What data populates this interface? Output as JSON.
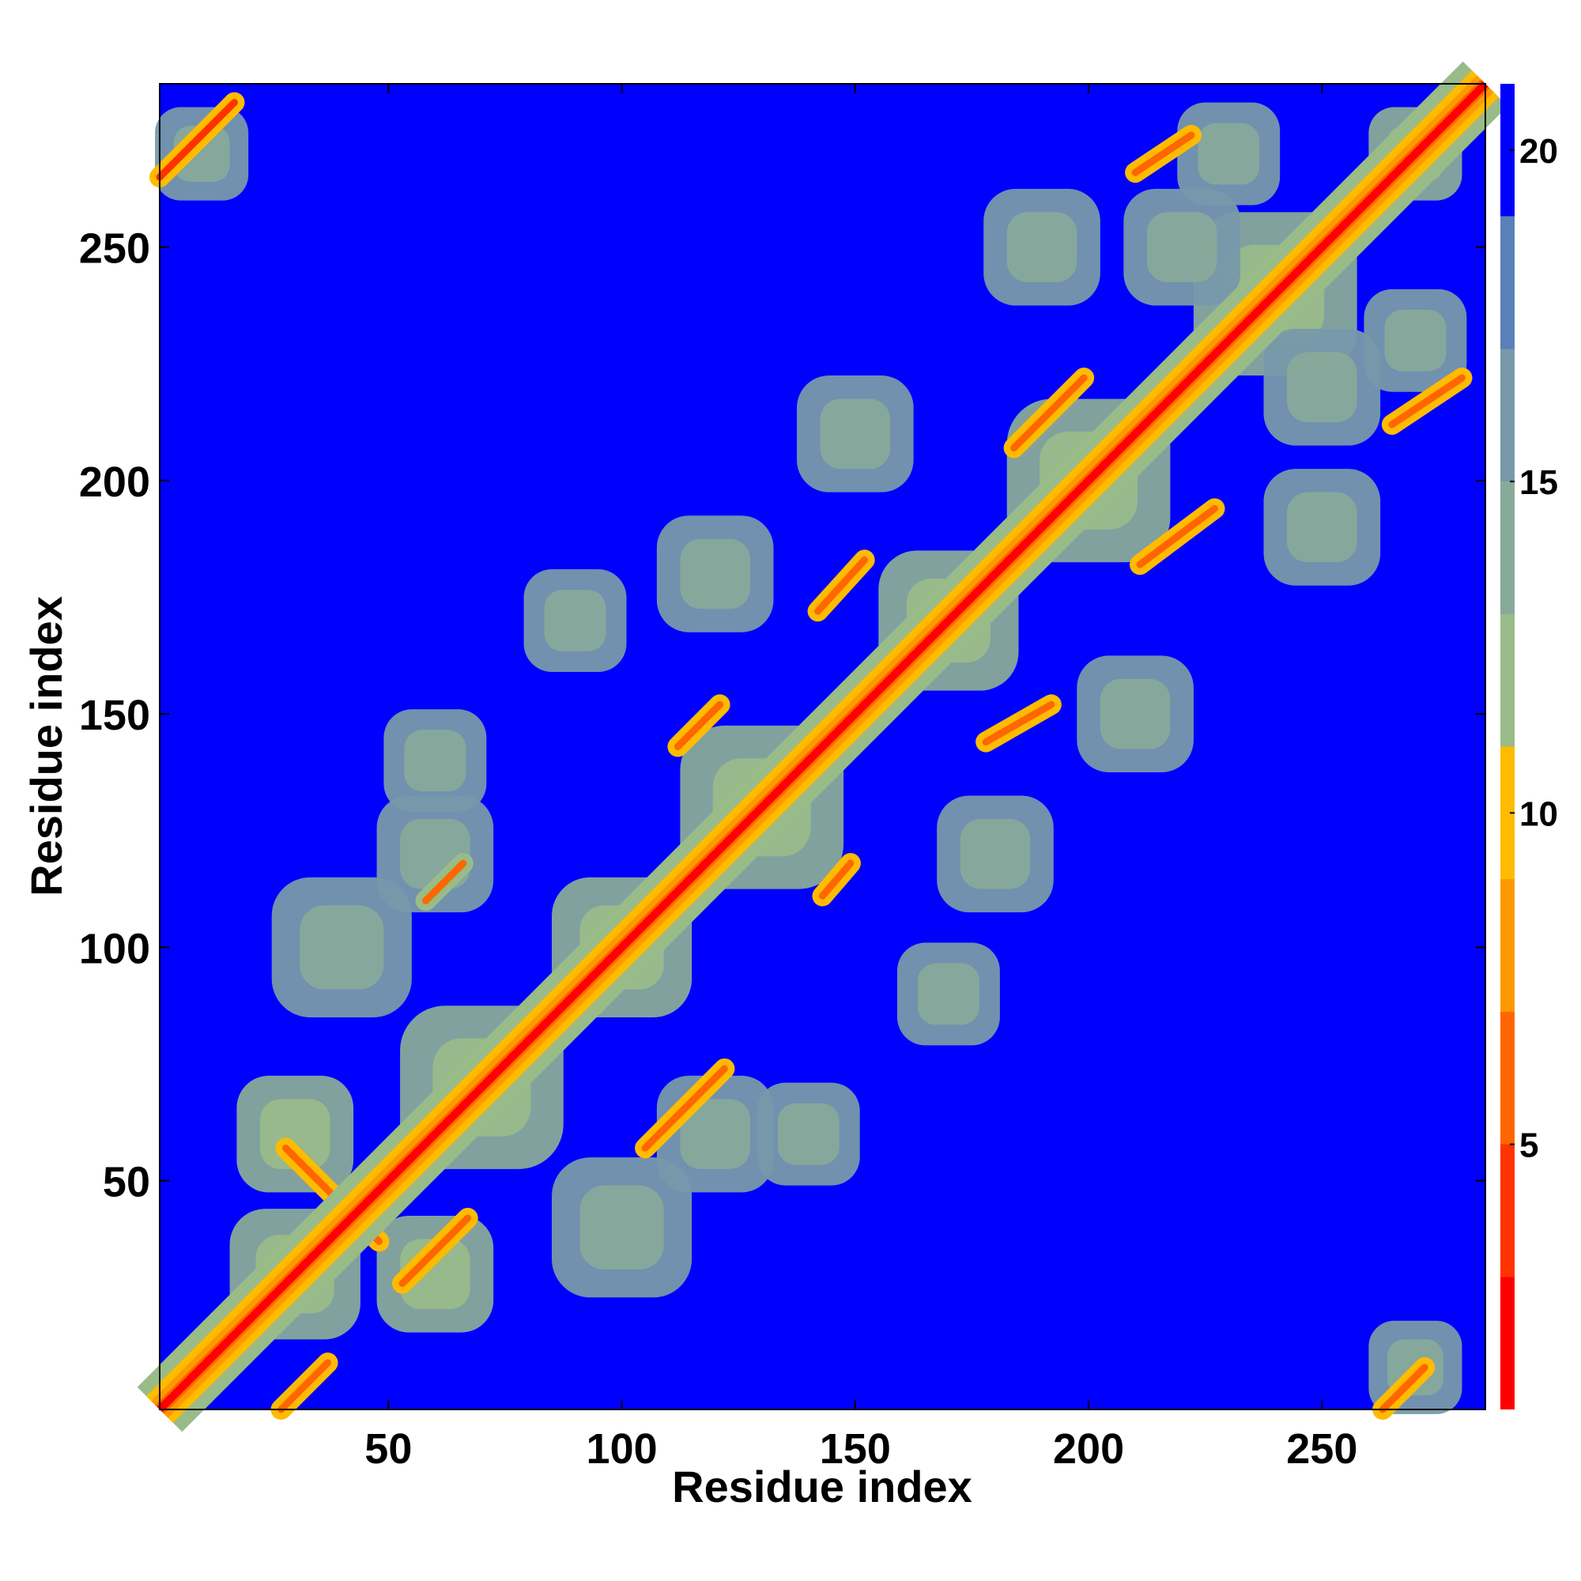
{
  "chart_data": {
    "type": "heatmap",
    "title": "",
    "xlabel": "Residue index",
    "ylabel": "Residue index",
    "n_residues": 285,
    "xlim": [
      1,
      285
    ],
    "ylim": [
      1,
      285
    ],
    "x_ticks": [
      50,
      100,
      150,
      200,
      250
    ],
    "y_ticks": [
      50,
      100,
      150,
      200,
      250
    ],
    "colorbar": {
      "range": [
        1,
        21
      ],
      "ticks": [
        5,
        10,
        15,
        20
      ],
      "colors": [
        "#ff0000",
        "#ff3300",
        "#ff6600",
        "#ff9900",
        "#ffbb00",
        "#99bb88",
        "#88aa99",
        "#7799aa",
        "#5a80b8",
        "#0000ff"
      ]
    },
    "diagonal_value": 1,
    "background_value": 21,
    "secondary_contacts": [
      {
        "x": [
          1,
          17
        ],
        "y": [
          265,
          281
        ],
        "value": 4
      },
      {
        "x": [
          28,
          48
        ],
        "y": [
          57,
          37
        ],
        "value": 5
      },
      {
        "x": [
          53,
          67
        ],
        "y": [
          28,
          42
        ],
        "value": 5
      },
      {
        "x": [
          27,
          37
        ],
        "y": [
          1,
          11
        ],
        "value": 5
      },
      {
        "x": [
          105,
          122
        ],
        "y": [
          57,
          74
        ],
        "value": 5
      },
      {
        "x": [
          112,
          121
        ],
        "y": [
          143,
          152
        ],
        "value": 5
      },
      {
        "x": [
          143,
          149
        ],
        "y": [
          111,
          118
        ],
        "value": 5
      },
      {
        "x": [
          142,
          152
        ],
        "y": [
          172,
          183
        ],
        "value": 5
      },
      {
        "x": [
          178,
          192
        ],
        "y": [
          144,
          152
        ],
        "value": 5
      },
      {
        "x": [
          184,
          199
        ],
        "y": [
          207,
          222
        ],
        "value": 5
      },
      {
        "x": [
          211,
          227
        ],
        "y": [
          182,
          194
        ],
        "value": 5
      },
      {
        "x": [
          210,
          222
        ],
        "y": [
          266,
          274
        ],
        "value": 5
      },
      {
        "x": [
          263,
          272
        ],
        "y": [
          1,
          10
        ],
        "value": 5
      },
      {
        "x": [
          265,
          280
        ],
        "y": [
          212,
          222
        ],
        "value": 5
      },
      {
        "x": [
          58,
          66
        ],
        "y": [
          110,
          118
        ],
        "value": 6
      }
    ],
    "contact_clusters": [
      {
        "x": 30,
        "y": 30,
        "size": 28,
        "value": 12
      },
      {
        "x": 70,
        "y": 70,
        "size": 35,
        "value": 12
      },
      {
        "x": 100,
        "y": 100,
        "size": 30,
        "value": 12
      },
      {
        "x": 130,
        "y": 130,
        "size": 35,
        "value": 12
      },
      {
        "x": 170,
        "y": 170,
        "size": 30,
        "value": 12
      },
      {
        "x": 200,
        "y": 200,
        "size": 35,
        "value": 12
      },
      {
        "x": 240,
        "y": 240,
        "size": 35,
        "value": 12
      },
      {
        "x": 270,
        "y": 270,
        "size": 20,
        "value": 12
      },
      {
        "x": 40,
        "y": 100,
        "size": 30,
        "value": 13
      },
      {
        "x": 100,
        "y": 40,
        "size": 30,
        "value": 13
      },
      {
        "x": 60,
        "y": 140,
        "size": 22,
        "value": 13
      },
      {
        "x": 140,
        "y": 60,
        "size": 22,
        "value": 13
      },
      {
        "x": 90,
        "y": 170,
        "size": 22,
        "value": 14
      },
      {
        "x": 170,
        "y": 90,
        "size": 22,
        "value": 14
      },
      {
        "x": 120,
        "y": 180,
        "size": 25,
        "value": 13
      },
      {
        "x": 180,
        "y": 120,
        "size": 25,
        "value": 13
      },
      {
        "x": 150,
        "y": 210,
        "size": 25,
        "value": 13
      },
      {
        "x": 210,
        "y": 150,
        "size": 25,
        "value": 13
      },
      {
        "x": 190,
        "y": 250,
        "size": 25,
        "value": 13
      },
      {
        "x": 250,
        "y": 190,
        "size": 25,
        "value": 13
      },
      {
        "x": 230,
        "y": 270,
        "size": 22,
        "value": 13
      },
      {
        "x": 270,
        "y": 230,
        "size": 22,
        "value": 13
      },
      {
        "x": 120,
        "y": 60,
        "size": 25,
        "value": 13
      },
      {
        "x": 60,
        "y": 120,
        "size": 25,
        "value": 13
      },
      {
        "x": 10,
        "y": 270,
        "size": 20,
        "value": 14
      },
      {
        "x": 270,
        "y": 10,
        "size": 20,
        "value": 14
      },
      {
        "x": 30,
        "y": 60,
        "size": 25,
        "value": 12
      },
      {
        "x": 60,
        "y": 30,
        "size": 25,
        "value": 12
      },
      {
        "x": 250,
        "y": 220,
        "size": 25,
        "value": 13
      },
      {
        "x": 220,
        "y": 250,
        "size": 25,
        "value": 13
      }
    ],
    "grid": false,
    "legend": "right (colorbar)"
  }
}
